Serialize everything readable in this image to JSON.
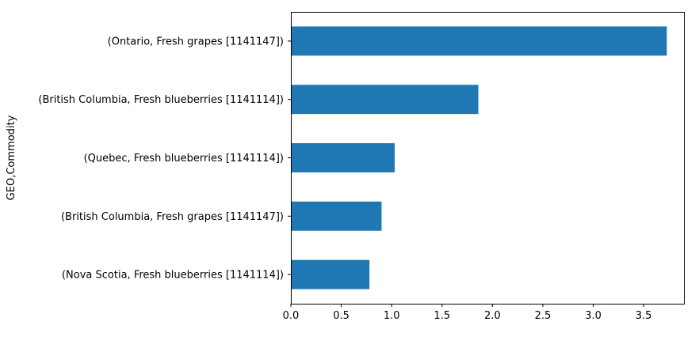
{
  "chart_data": {
    "type": "bar",
    "orientation": "horizontal",
    "categories": [
      "(Nova Scotia, Fresh blueberries [1141114])",
      "(British Columbia, Fresh grapes [1141147])",
      "(Quebec, Fresh blueberries [1141114])",
      "(British Columbia, Fresh blueberries [1141114])",
      "(Ontario, Fresh grapes [1141147])"
    ],
    "values": [
      0.78,
      0.9,
      1.03,
      1.86,
      3.73
    ],
    "xlabel": "",
    "ylabel": "GEO,Commodity",
    "xlim": [
      0,
      3.9
    ],
    "xticks": [
      "0.0",
      "0.5",
      "1.0",
      "1.5",
      "2.0",
      "2.5",
      "3.0",
      "3.5"
    ],
    "grid": false,
    "legend": "none",
    "bar_color": "#1f77b4"
  }
}
